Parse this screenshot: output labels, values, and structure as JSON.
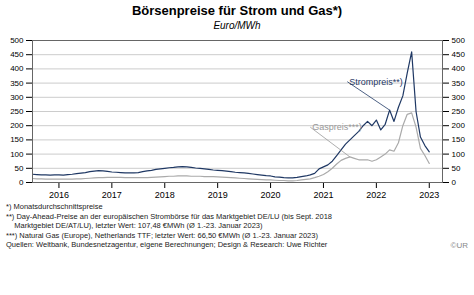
{
  "chart_data": {
    "type": "line",
    "title": "Börsenpreise für Strom und Gas*)",
    "subtitle": "Euro/MWh",
    "x": [
      2015.5,
      2015.583,
      2015.667,
      2015.75,
      2015.833,
      2015.917,
      2016.0,
      2016.083,
      2016.167,
      2016.25,
      2016.333,
      2016.417,
      2016.5,
      2016.583,
      2016.667,
      2016.75,
      2016.833,
      2016.917,
      2017.0,
      2017.083,
      2017.167,
      2017.25,
      2017.333,
      2017.417,
      2017.5,
      2017.583,
      2017.667,
      2017.75,
      2017.833,
      2017.917,
      2018.0,
      2018.083,
      2018.167,
      2018.25,
      2018.333,
      2018.417,
      2018.5,
      2018.583,
      2018.667,
      2018.75,
      2018.833,
      2018.917,
      2019.0,
      2019.083,
      2019.167,
      2019.25,
      2019.333,
      2019.417,
      2019.5,
      2019.583,
      2019.667,
      2019.75,
      2019.833,
      2019.917,
      2020.0,
      2020.083,
      2020.167,
      2020.25,
      2020.333,
      2020.417,
      2020.5,
      2020.583,
      2020.667,
      2020.75,
      2020.833,
      2020.917,
      2021.0,
      2021.083,
      2021.167,
      2021.25,
      2021.333,
      2021.417,
      2021.5,
      2021.583,
      2021.667,
      2021.75,
      2021.833,
      2021.917,
      2022.0,
      2022.083,
      2022.167,
      2022.25,
      2022.333,
      2022.417,
      2022.5,
      2022.583,
      2022.667,
      2022.75,
      2022.833,
      2022.917,
      2023.0
    ],
    "series": [
      {
        "name": "Gaspreis***)",
        "color": "#AAAAAA",
        "values": [
          14,
          13,
          13,
          12,
          12,
          12,
          12,
          12,
          12,
          12,
          13,
          13,
          14,
          15,
          16,
          17,
          17,
          18,
          18,
          18,
          18,
          17,
          17,
          17,
          17,
          17,
          17,
          18,
          19,
          20,
          21,
          22,
          22,
          23,
          23,
          23,
          22,
          22,
          22,
          21,
          21,
          21,
          20,
          19,
          18,
          17,
          16,
          15,
          14,
          13,
          12,
          11,
          10,
          9,
          9,
          8,
          7,
          7,
          6,
          6,
          7,
          9,
          11,
          13,
          17,
          22,
          28,
          38,
          50,
          65,
          78,
          85,
          90,
          85,
          80,
          80,
          80,
          75,
          80,
          90,
          100,
          115,
          110,
          140,
          200,
          240,
          245,
          195,
          120,
          95,
          67
        ]
      },
      {
        "name": "Strompreis**)",
        "color": "#1F3864",
        "values": [
          29,
          28,
          27,
          27,
          26,
          27,
          27,
          26,
          28,
          29,
          31,
          33,
          35,
          38,
          40,
          42,
          41,
          39,
          37,
          36,
          35,
          34,
          34,
          34,
          35,
          38,
          41,
          43,
          46,
          48,
          50,
          52,
          53,
          55,
          56,
          55,
          53,
          51,
          50,
          48,
          46,
          44,
          43,
          42,
          40,
          38,
          36,
          35,
          34,
          32,
          30,
          28,
          26,
          24,
          23,
          20,
          19,
          17,
          16,
          16,
          18,
          21,
          23,
          27,
          32,
          48,
          55,
          62,
          75,
          95,
          115,
          135,
          150,
          165,
          180,
          200,
          215,
          200,
          220,
          185,
          205,
          255,
          215,
          265,
          305,
          385,
          460,
          250,
          160,
          130,
          108
        ]
      }
    ],
    "xlim": [
      2015.5,
      2023.25
    ],
    "xticks": [
      2016,
      2017,
      2018,
      2019,
      2020,
      2021,
      2022,
      2023
    ],
    "ylim": [
      0,
      500
    ],
    "yticks": [
      0,
      50,
      100,
      150,
      200,
      250,
      300,
      350,
      400,
      450,
      500
    ],
    "y2lim": [
      0,
      500
    ],
    "y2ticks": [
      0,
      50,
      100,
      150,
      200,
      250,
      300,
      350,
      400,
      450,
      500
    ],
    "grid": true,
    "annotations": [
      {
        "text": "Strompreis**)",
        "x": 2022.25,
        "y": 255,
        "text_x": 2021.45,
        "text_y": 355,
        "color": "#1F3864"
      },
      {
        "text": "Gaspreis***)",
        "x": 2021.5,
        "y": 90,
        "text_x": 2020.75,
        "text_y": 195,
        "color": "#999999"
      }
    ],
    "footnotes": [
      "*) Monatsdurchschnittspreise",
      "**) Day-Ahead-Preise an der europäischen Strombörse für das Marktgebiet DE/LU (bis Sept. 2018\n    Marktgebiet DE/AT/LU), letzter Wert: 107,48 €MWh (Ø 1.-23. Januar 2023)",
      "***) Natural Gas (Europe), Netherlands TTF; letzter Wert: 66,50 €MWh (Ø 1.-23. Januar 2023)",
      "Quellen: Weltbank, Bundesnetzagentur, eigene Berechnungen; Design & Research: Uwe Richter"
    ],
    "copyright": "©UR"
  }
}
